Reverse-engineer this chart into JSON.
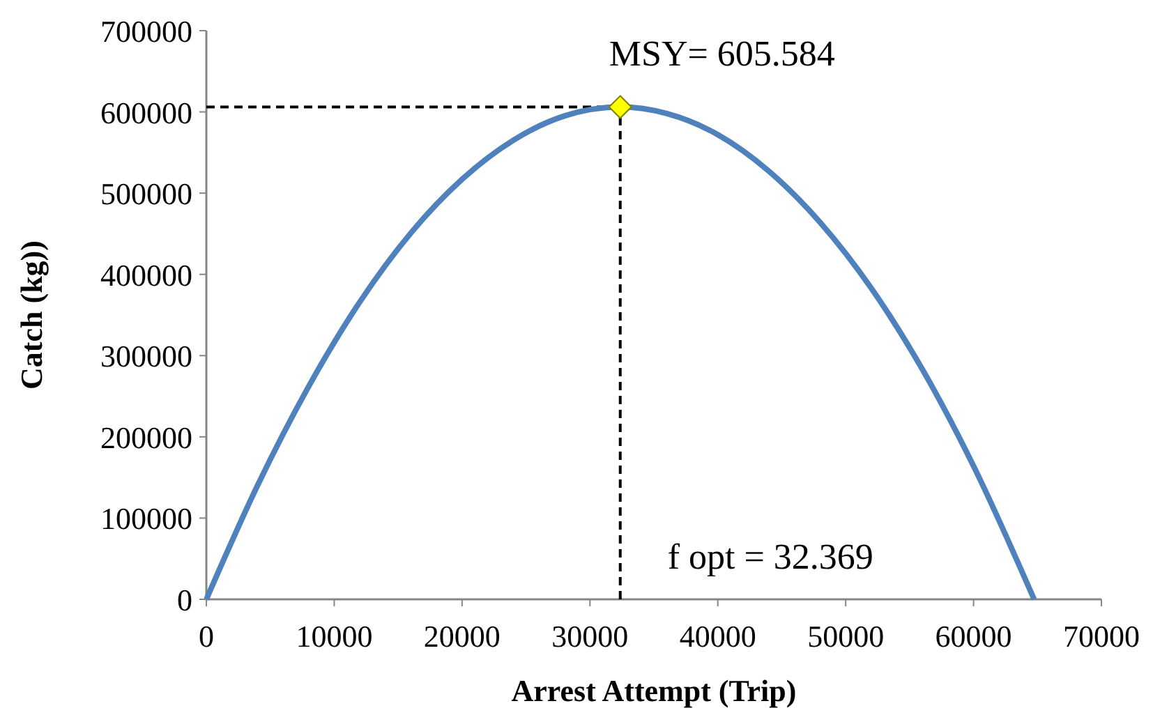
{
  "chart_data": {
    "type": "line",
    "xlabel": "Arrest Attempt (Trip)",
    "ylabel": "Catch (kg))",
    "x": [
      0,
      4000,
      8000,
      12000,
      16000,
      20000,
      24000,
      28000,
      32369,
      36000,
      40000,
      44000,
      48000,
      52000,
      56000,
      60000,
      64738
    ],
    "series": [
      {
        "color": "#4f81bd",
        "values": [
          0,
          140000,
          262000,
          366000,
          451000,
          517000,
          565000,
          595000,
          606000,
          598000,
          572000,
          527000,
          464000,
          383000,
          283000,
          164000,
          0
        ]
      },
      {
        "type": "scatter",
        "color": "#ffff00",
        "marker": "diamond",
        "x": [
          32369
        ],
        "values": [
          606000
        ]
      }
    ],
    "xlim": [
      0,
      70000
    ],
    "xticks": [
      0,
      10000,
      20000,
      30000,
      40000,
      50000,
      60000,
      70000
    ],
    "ylim": [
      0,
      700000
    ],
    "yticks": [
      0,
      100000,
      200000,
      300000,
      400000,
      500000,
      600000,
      700000
    ],
    "ref_lines": [
      {
        "axis": "y",
        "value": 606000,
        "line_style": "dashed"
      },
      {
        "axis": "x",
        "value": 32369,
        "line_style": "dashed"
      }
    ],
    "annotations": [
      {
        "text": "MSY= 605.584",
        "x": 32369,
        "y": 606000
      },
      {
        "text": "f opt = 32.369",
        "x": 32369,
        "y": 0
      }
    ],
    "grid": false
  }
}
